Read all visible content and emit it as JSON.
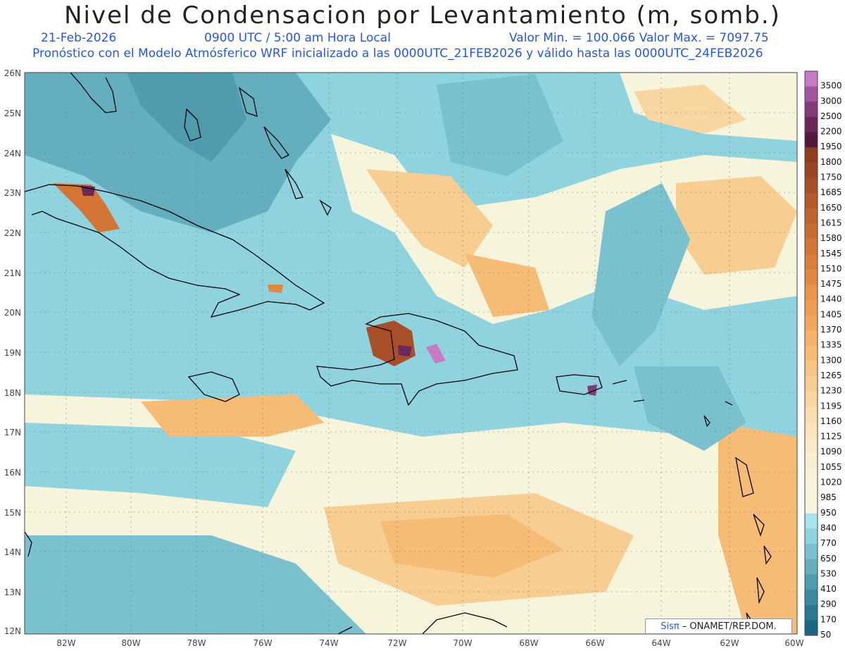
{
  "title": "Nivel de Condensacion por Levantamiento (m, somb.)",
  "date": "21-Feb-2026",
  "time": "0900 UTC / 5:00 am Hora Local",
  "minmax": "Valor Min. = 100.066  Valor Max. = 7097.75",
  "forecast_note": "Pronóstico con el Modelo Atmósferico WRF inicializado a las 0000UTC_21FEB2026 y válido hasta las  0000UTC_24FEB2026",
  "credit": {
    "brand": "Sisπ",
    "text": "– ONAMET/REP.DOM."
  },
  "lat_labels": [
    "26N",
    "25N",
    "24N",
    "23N",
    "22N",
    "21N",
    "20N",
    "19N",
    "18N",
    "17N",
    "16N",
    "15N",
    "14N",
    "13N",
    "12N"
  ],
  "lon_labels": [
    "82W",
    "80W",
    "78W",
    "76W",
    "74W",
    "72W",
    "70W",
    "68W",
    "66W",
    "64W",
    "62W",
    "60W"
  ],
  "colorbar": {
    "levels": [
      "3500",
      "3000",
      "2500",
      "2200",
      "1950",
      "1800",
      "1750",
      "1685",
      "1650",
      "1615",
      "1580",
      "1545",
      "1510",
      "1475",
      "1440",
      "1405",
      "1370",
      "1335",
      "1300",
      "1265",
      "1230",
      "1195",
      "1160",
      "1125",
      "1090",
      "1055",
      "1020",
      "985",
      "950",
      "840",
      "770",
      "650",
      "530",
      "410",
      "290",
      "170",
      "50"
    ],
    "colors": [
      "#c77ac6",
      "#a2529f",
      "#833a79",
      "#6b2757",
      "#53183e",
      "#8e3d21",
      "#9c4523",
      "#a94f27",
      "#b5592a",
      "#c0622e",
      "#c96c31",
      "#d27535",
      "#da7f3a",
      "#e2893f",
      "#e99447",
      "#ee9e50",
      "#f2a85b",
      "#f4b268",
      "#f6bb75",
      "#f7c483",
      "#f8cd92",
      "#f9d5a0",
      "#fadcae",
      "#fae3bb",
      "#fae9c6",
      "#f9eecf",
      "#f7f2d7",
      "#f6f4db",
      "#f5f4da",
      "#a8e4ec",
      "#8fd3df",
      "#79c1cf",
      "#64afbf",
      "#4f9caf",
      "#3c8aa0",
      "#2b7991",
      "#1c6882"
    ]
  }
}
